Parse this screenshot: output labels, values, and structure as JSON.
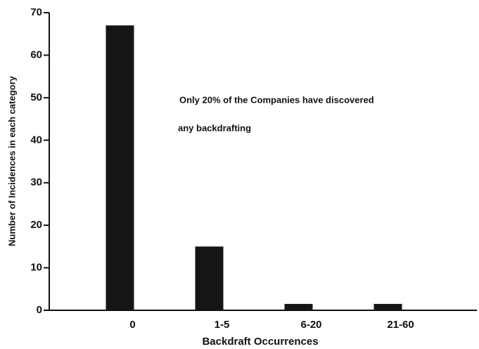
{
  "chart_data": {
    "type": "bar",
    "categories": [
      "0",
      "1-5",
      "6-20",
      "21-60"
    ],
    "values": [
      67,
      15,
      1.5,
      1.5
    ],
    "color": "#151515",
    "xlabel": "Backdraft Occurrences",
    "ylabel": "Number of Incidences in each category",
    "annotations": [
      "Only 20% of the Companies have discovered",
      "any backdrafting"
    ],
    "ylim": [
      0,
      70
    ],
    "yticks": [
      0,
      10,
      20,
      30,
      40,
      50,
      60,
      70
    ],
    "grid": false
  }
}
